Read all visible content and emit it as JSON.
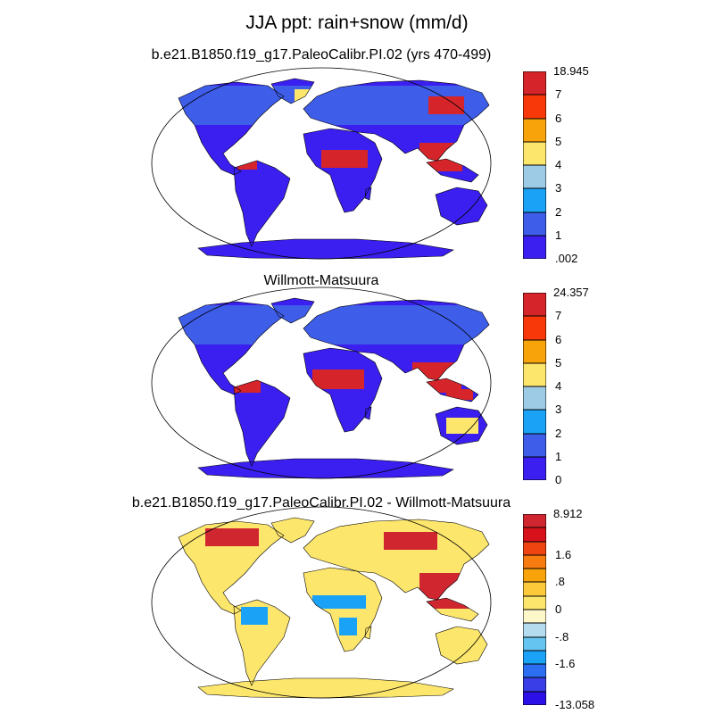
{
  "title": "JJA ppt: rain+snow (mm/d)",
  "panels": [
    {
      "id": "model",
      "subtitle": "b.e21.B1850.f19_g17.PaleoCalibr.PI.02 (yrs 470-499)",
      "colorbar": {
        "colors": [
          "#3a1ff0",
          "#3e5de9",
          "#1aa3f6",
          "#9dcbe6",
          "#fde66c",
          "#f9a30b",
          "#f9380a",
          "#d6252a"
        ],
        "labels": [
          "18.945",
          "7",
          "6",
          "5",
          "4",
          "3",
          "2",
          "1",
          ".002"
        ]
      }
    },
    {
      "id": "obs",
      "subtitle": "Willmott-Matsuura",
      "colorbar": {
        "colors": [
          "#3a1ff0",
          "#3e5de9",
          "#1aa3f6",
          "#9dcbe6",
          "#fde66c",
          "#f9a30b",
          "#f9380a",
          "#d6252a"
        ],
        "labels": [
          "24.357",
          "7",
          "6",
          "5",
          "4",
          "3",
          "2",
          "1",
          "0"
        ]
      }
    },
    {
      "id": "diff",
      "subtitle": "b.e21.B1850.f19_g17.PaleoCalibr.PI.02 - Willmott-Matsuura",
      "colorbar": {
        "colors": [
          "#2c10e8",
          "#3a3ee6",
          "#2c6ef0",
          "#1aa3f6",
          "#65c4f0",
          "#b5dbef",
          "#fdf7c9",
          "#fde66c",
          "#fcc93a",
          "#f9a30b",
          "#f77c10",
          "#ef4410",
          "#d7121c",
          "#cf2630"
        ],
        "labels": [
          "8.912",
          "",
          "",
          "1.6",
          "",
          ".8",
          "",
          "0",
          "",
          "-.8",
          "",
          "-1.6",
          "",
          "",
          "-13.058"
        ]
      }
    }
  ]
}
